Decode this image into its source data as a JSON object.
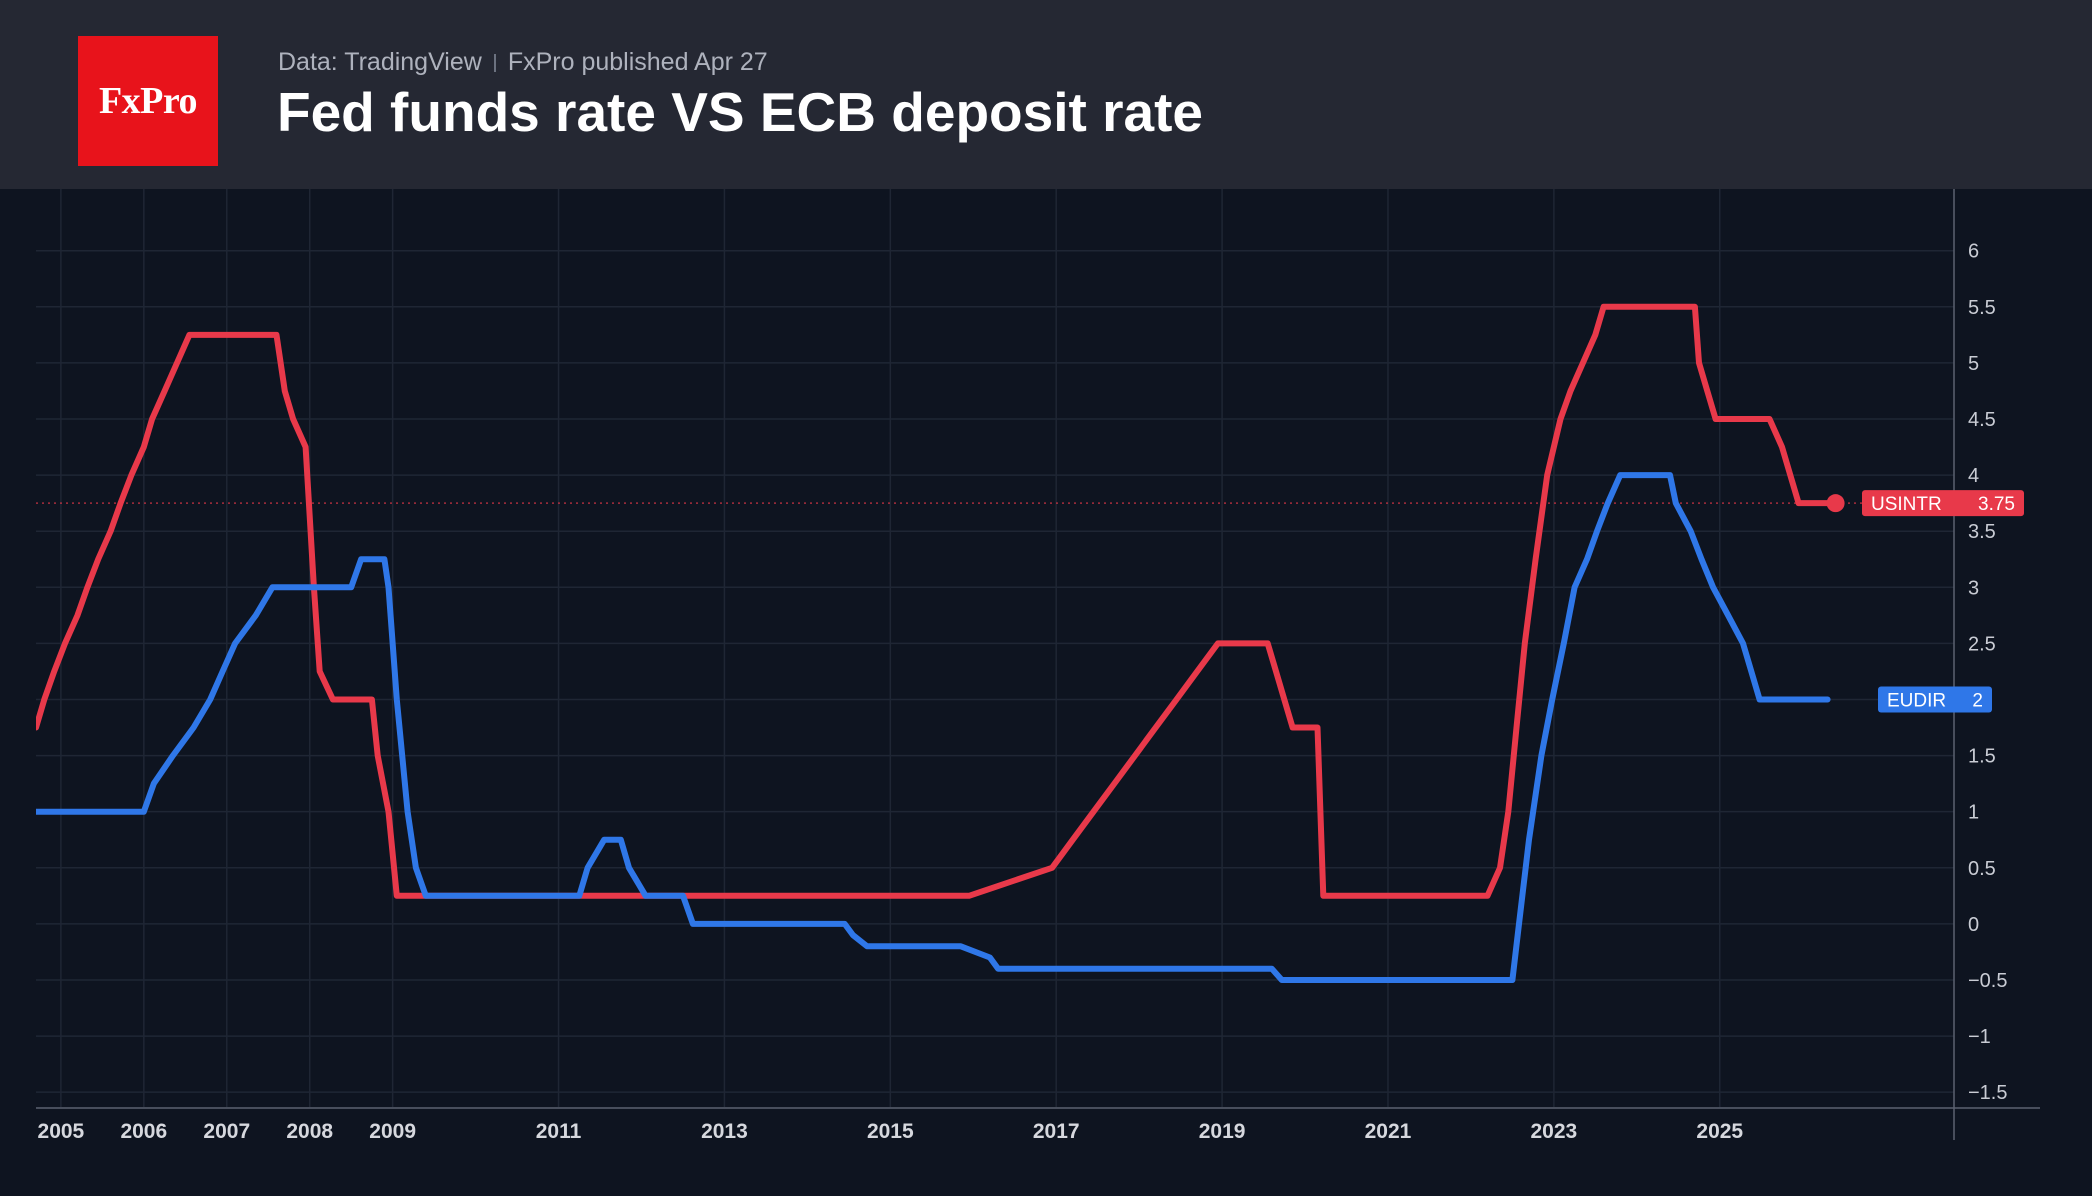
{
  "header": {
    "logo_text": "FxPro",
    "source": "Data: TradingView",
    "published": "FxPro published Apr 27",
    "title": "Fed funds rate VS ECB deposit rate"
  },
  "colors": {
    "header_bg": "#252833",
    "chart_bg": "#0e1420",
    "logo_red": "#e8131b",
    "us_series": "#e8394a",
    "eu_series": "#2f77e8"
  },
  "chart_data": {
    "type": "line",
    "title": "Fed funds rate VS ECB deposit rate",
    "xlabel": "",
    "ylabel": "",
    "xlim": [
      2004.7,
      2027.8
    ],
    "ylim": [
      -1.65,
      6.55
    ],
    "x_ticks": [
      "2005",
      "2006",
      "2007",
      "2008",
      "2009",
      "2011",
      "2013",
      "2015",
      "2017",
      "2019",
      "2021",
      "2023",
      "2025"
    ],
    "x_tick_values": [
      2005,
      2006,
      2007,
      2008,
      2009,
      2011,
      2013,
      2015,
      2017,
      2019,
      2021,
      2023,
      2025
    ],
    "y_ticks": [
      6,
      5.5,
      5,
      4.5,
      4,
      3.5,
      3,
      2.5,
      2,
      1.5,
      1,
      0.5,
      0,
      -0.5,
      -1,
      -1.5
    ],
    "y_tick_labels": [
      "6",
      "5.5",
      "5",
      "4.5",
      "4",
      "3.5",
      "3",
      "2.5",
      "2",
      "1.5",
      "1",
      "0.5",
      "0",
      "−0.5",
      "−1",
      "−1.5"
    ],
    "grid": true,
    "series": [
      {
        "name": "USINTR",
        "last_value": 3.75,
        "last_label": "3.75",
        "points": [
          [
            2004.7,
            1.75
          ],
          [
            2004.8,
            2.0
          ],
          [
            2004.92,
            2.25
          ],
          [
            2005.05,
            2.5
          ],
          [
            2005.2,
            2.75
          ],
          [
            2005.32,
            3.0
          ],
          [
            2005.45,
            3.25
          ],
          [
            2005.6,
            3.5
          ],
          [
            2005.72,
            3.75
          ],
          [
            2005.85,
            4.0
          ],
          [
            2006.0,
            4.25
          ],
          [
            2006.1,
            4.5
          ],
          [
            2006.25,
            4.75
          ],
          [
            2006.4,
            5.0
          ],
          [
            2006.55,
            5.25
          ],
          [
            2007.6,
            5.25
          ],
          [
            2007.7,
            4.75
          ],
          [
            2007.8,
            4.5
          ],
          [
            2007.95,
            4.25
          ],
          [
            2008.05,
            3.0
          ],
          [
            2008.12,
            2.25
          ],
          [
            2008.28,
            2.0
          ],
          [
            2008.75,
            2.0
          ],
          [
            2008.82,
            1.5
          ],
          [
            2008.95,
            1.0
          ],
          [
            2009.05,
            0.25
          ],
          [
            2015.95,
            0.25
          ],
          [
            2016.95,
            0.5
          ],
          [
            2017.2,
            0.75
          ],
          [
            2017.45,
            1.0
          ],
          [
            2017.7,
            1.25
          ],
          [
            2017.95,
            1.5
          ],
          [
            2018.2,
            1.75
          ],
          [
            2018.45,
            2.0
          ],
          [
            2018.7,
            2.25
          ],
          [
            2018.95,
            2.5
          ],
          [
            2019.55,
            2.5
          ],
          [
            2019.65,
            2.25
          ],
          [
            2019.75,
            2.0
          ],
          [
            2019.85,
            1.75
          ],
          [
            2020.15,
            1.75
          ],
          [
            2020.22,
            0.25
          ],
          [
            2022.2,
            0.25
          ],
          [
            2022.35,
            0.5
          ],
          [
            2022.45,
            1.0
          ],
          [
            2022.55,
            1.75
          ],
          [
            2022.65,
            2.5
          ],
          [
            2022.78,
            3.25
          ],
          [
            2022.92,
            4.0
          ],
          [
            2023.08,
            4.5
          ],
          [
            2023.2,
            4.75
          ],
          [
            2023.35,
            5.0
          ],
          [
            2023.5,
            5.25
          ],
          [
            2023.6,
            5.5
          ],
          [
            2024.7,
            5.5
          ],
          [
            2024.75,
            5.0
          ],
          [
            2024.85,
            4.75
          ],
          [
            2024.95,
            4.5
          ],
          [
            2025.6,
            4.5
          ],
          [
            2025.75,
            4.25
          ],
          [
            2025.85,
            4.0
          ],
          [
            2025.95,
            3.75
          ],
          [
            2026.3,
            3.75
          ]
        ]
      },
      {
        "name": "EUDIR",
        "last_value": 2,
        "last_label": "2",
        "points": [
          [
            2004.7,
            1.0
          ],
          [
            2006.0,
            1.0
          ],
          [
            2006.12,
            1.25
          ],
          [
            2006.35,
            1.5
          ],
          [
            2006.6,
            1.75
          ],
          [
            2006.8,
            2.0
          ],
          [
            2006.95,
            2.25
          ],
          [
            2007.1,
            2.5
          ],
          [
            2007.35,
            2.75
          ],
          [
            2007.55,
            3.0
          ],
          [
            2008.5,
            3.0
          ],
          [
            2008.62,
            3.25
          ],
          [
            2008.9,
            3.25
          ],
          [
            2008.95,
            3.0
          ],
          [
            2009.05,
            2.0
          ],
          [
            2009.18,
            1.0
          ],
          [
            2009.28,
            0.5
          ],
          [
            2009.4,
            0.25
          ],
          [
            2011.25,
            0.25
          ],
          [
            2011.35,
            0.5
          ],
          [
            2011.55,
            0.75
          ],
          [
            2011.75,
            0.75
          ],
          [
            2011.85,
            0.5
          ],
          [
            2012.05,
            0.25
          ],
          [
            2012.5,
            0.25
          ],
          [
            2012.62,
            0.0
          ],
          [
            2014.45,
            0.0
          ],
          [
            2014.55,
            -0.1
          ],
          [
            2014.72,
            -0.2
          ],
          [
            2015.85,
            -0.2
          ],
          [
            2016.2,
            -0.3
          ],
          [
            2016.3,
            -0.4
          ],
          [
            2019.6,
            -0.4
          ],
          [
            2019.72,
            -0.5
          ],
          [
            2022.5,
            -0.5
          ],
          [
            2022.58,
            0.0
          ],
          [
            2022.7,
            0.75
          ],
          [
            2022.85,
            1.5
          ],
          [
            2022.98,
            2.0
          ],
          [
            2023.12,
            2.5
          ],
          [
            2023.25,
            3.0
          ],
          [
            2023.4,
            3.25
          ],
          [
            2023.52,
            3.5
          ],
          [
            2023.65,
            3.75
          ],
          [
            2023.8,
            4.0
          ],
          [
            2024.4,
            4.0
          ],
          [
            2024.47,
            3.75
          ],
          [
            2024.65,
            3.5
          ],
          [
            2024.78,
            3.25
          ],
          [
            2024.92,
            3.0
          ],
          [
            2025.1,
            2.75
          ],
          [
            2025.28,
            2.5
          ],
          [
            2025.38,
            2.25
          ],
          [
            2025.48,
            2.0
          ],
          [
            2026.3,
            2.0
          ]
        ]
      }
    ]
  }
}
